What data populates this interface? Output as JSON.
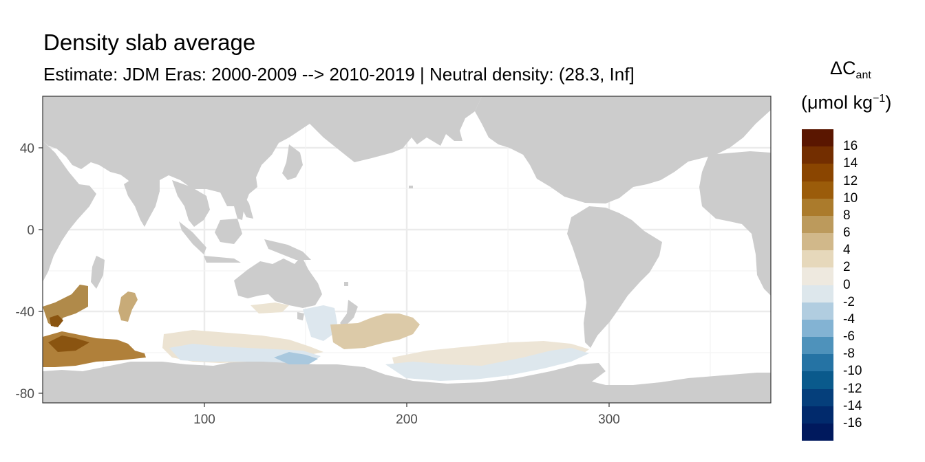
{
  "title": "Density slab average",
  "subtitle": "Estimate: JDM Eras: 2000-2009 --> 2010-2019 | Neutral density: (28.3, Inf]",
  "legend": {
    "title_main": "ΔC",
    "title_sub": "ant",
    "unit_main": "(μmol kg",
    "unit_sup": "−1",
    "unit_close": ")",
    "colors": [
      "#5a1600",
      "#732e00",
      "#8a4500",
      "#9b5c0a",
      "#ab7b2c",
      "#bc9a5c",
      "#d1b88a",
      "#e6d8bb",
      "#eee9df",
      "#dde7ec",
      "#b1cde0",
      "#83b3d3",
      "#4e92bb",
      "#2573a4",
      "#0a5a8c",
      "#053f7b",
      "#012a6c",
      "#00195d"
    ],
    "labels": [
      "16",
      "14",
      "12",
      "10",
      "8",
      "6",
      "4",
      "2",
      "0",
      "-2",
      "-4",
      "-6",
      "-8",
      "-10",
      "-12",
      "-14",
      "-16"
    ]
  },
  "axes": {
    "x_ticks": [
      "100",
      "200",
      "300"
    ],
    "y_ticks": [
      "40",
      "0",
      "-40",
      "-80"
    ]
  },
  "map_data": {
    "lon_range": [
      20,
      380
    ],
    "lat_range": [
      -85,
      65
    ],
    "grid": true,
    "projection": "equirectangular",
    "ocean_color": "#ffffff",
    "land_color": "#cccccc",
    "anomaly_patches": [
      {
        "region": "Southwest Indian Ocean sector",
        "value_class": "10 to 14"
      },
      {
        "region": "Kerguelen area",
        "value_class": "6 to 8"
      },
      {
        "region": "Southeast Indian Ocean",
        "value_class": "0 to 2"
      },
      {
        "region": "South of Australia",
        "value_class": "-2 to -4"
      },
      {
        "region": "Southwest Pacific",
        "value_class": "2 to 4"
      },
      {
        "region": "Ross Sea / South Pacific",
        "value_class": "0 to 2"
      },
      {
        "region": "Amundsen-Bellingshausen",
        "value_class": "0 to -2"
      }
    ]
  }
}
